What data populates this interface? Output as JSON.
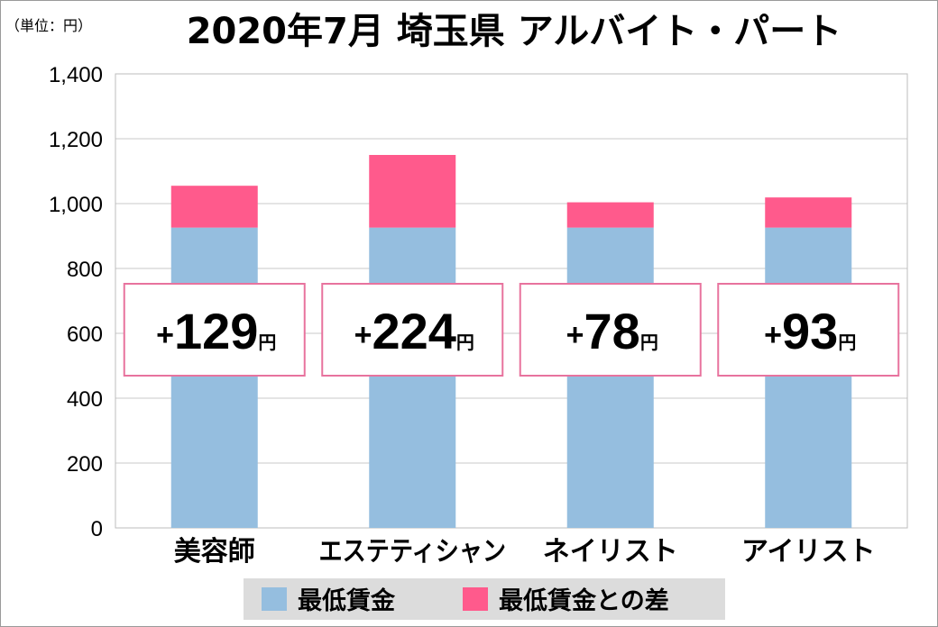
{
  "chart_data": {
    "type": "bar",
    "title": "2020年7月 埼玉県 アルバイト・パート",
    "unit_label": "（単位：円）",
    "categories": [
      "美容師",
      "エステティシャン",
      "ネイリスト",
      "アイリスト"
    ],
    "series": [
      {
        "name": "最低賃金",
        "values": [
          926,
          926,
          926,
          926
        ],
        "color": "#95bedf"
      },
      {
        "name": "最低賃金との差",
        "values": [
          129,
          224,
          78,
          93
        ],
        "color": "#ff5a8c"
      }
    ],
    "diff_labels": [
      {
        "sign": "+",
        "value": "129",
        "unit": "円"
      },
      {
        "sign": "+",
        "value": "224",
        "unit": "円"
      },
      {
        "sign": "+",
        "value": "78",
        "unit": "円"
      },
      {
        "sign": "+",
        "value": "93",
        "unit": "円"
      }
    ],
    "ylim": [
      0,
      1400
    ],
    "yticks": [
      "0",
      "200",
      "400",
      "600",
      "800",
      "1,000",
      "1,200",
      "1,400"
    ],
    "grid": true,
    "stacked": true,
    "legend_position": "bottom",
    "label_box_border_color": "#e8739e"
  }
}
